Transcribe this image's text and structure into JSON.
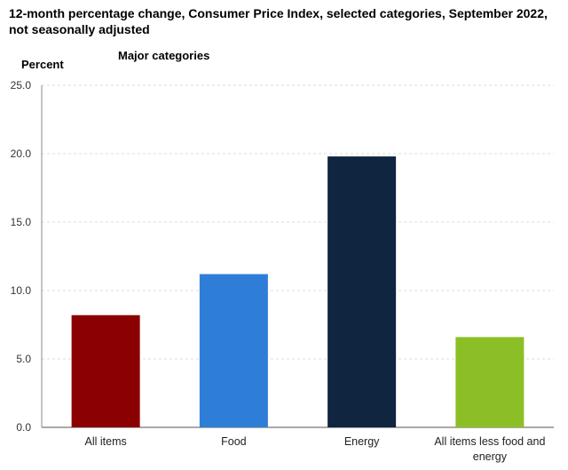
{
  "chart_data": {
    "type": "bar",
    "title": "12-month percentage change, Consumer Price Index, selected categories, September 2022, not seasonally adjusted",
    "subtitle": "Major categories",
    "ylabel": "Percent",
    "xlabel": "",
    "ylim": [
      0,
      25
    ],
    "yticks": [
      "0.0",
      "5.0",
      "10.0",
      "15.0",
      "20.0",
      "25.0"
    ],
    "categories": [
      "All items",
      "Food",
      "Energy",
      "All items less food and energy"
    ],
    "category_lines": [
      [
        "All items"
      ],
      [
        "Food"
      ],
      [
        "Energy"
      ],
      [
        "All items less food and",
        "energy"
      ]
    ],
    "values": [
      8.2,
      11.2,
      19.8,
      6.6
    ],
    "colors": [
      "#8b0000",
      "#2e7ed8",
      "#0f2540",
      "#8cbf26"
    ],
    "grid": true,
    "legend": "none"
  }
}
